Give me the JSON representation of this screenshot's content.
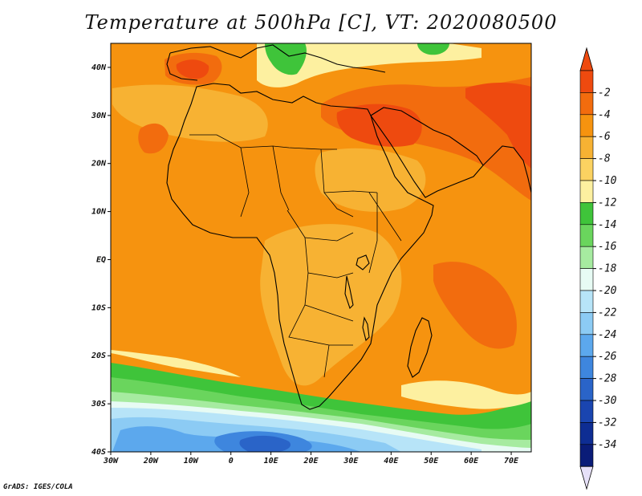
{
  "title": "Temperature at 500hPa [C], VT: 2020080500",
  "credit": "GrADS: IGES/COLA",
  "map": {
    "projection": "latlon",
    "lon_range": [
      -30,
      75
    ],
    "lat_range": [
      -40,
      45
    ],
    "lon_ticks": [
      {
        "value": -30,
        "label": "30W"
      },
      {
        "value": -20,
        "label": "20W"
      },
      {
        "value": -10,
        "label": "10W"
      },
      {
        "value": 0,
        "label": "0"
      },
      {
        "value": 10,
        "label": "10E"
      },
      {
        "value": 20,
        "label": "20E"
      },
      {
        "value": 30,
        "label": "30E"
      },
      {
        "value": 40,
        "label": "40E"
      },
      {
        "value": 50,
        "label": "50E"
      },
      {
        "value": 60,
        "label": "60E"
      },
      {
        "value": 70,
        "label": "70E"
      }
    ],
    "lat_ticks": [
      {
        "value": 40,
        "label": "40N"
      },
      {
        "value": 30,
        "label": "30N"
      },
      {
        "value": 20,
        "label": "20N"
      },
      {
        "value": 10,
        "label": "10N"
      },
      {
        "value": 0,
        "label": "EQ"
      },
      {
        "value": -10,
        "label": "10S"
      },
      {
        "value": -20,
        "label": "20S"
      },
      {
        "value": -30,
        "label": "30S"
      },
      {
        "value": -40,
        "label": "40S"
      }
    ]
  },
  "colorbar": {
    "labels": [
      "-2",
      "-4",
      "-6",
      "-8",
      "-10",
      "-12",
      "-14",
      "-16",
      "-18",
      "-20",
      "-22",
      "-24",
      "-26",
      "-28",
      "-30",
      "-32",
      "-34"
    ],
    "colors": [
      "#ee4a0f",
      "#f26c0e",
      "#f6930f",
      "#f7b233",
      "#fbd261",
      "#fdf0a0",
      "#3fc43a",
      "#6ad55d",
      "#a6eba0",
      "#e7fbf4",
      "#b7e4f8",
      "#8ccbf4",
      "#5ca8ed",
      "#3e86de",
      "#2a64c8",
      "#1a45b0",
      "#0e2d93",
      "#0a1c78"
    ],
    "top_color": "#ee4a0f",
    "bottom_color": "#e6e0f8"
  },
  "field": {
    "base_color": "#f6930f",
    "colors": {
      "warmest": "#ee4a0f",
      "warm": "#f26c0e",
      "mild": "#f7b233",
      "pale": "#fbd261",
      "cream": "#fdf0a0",
      "green": "#3fc43a",
      "lightgreen": "#6ad55d",
      "palegreen": "#a6eba0",
      "mint": "#e7fbf4",
      "sky": "#b7e4f8",
      "lightblue": "#8ccbf4",
      "blue": "#5ca8ed",
      "midblue": "#3e86de",
      "deepblue": "#2a64c8"
    }
  }
}
